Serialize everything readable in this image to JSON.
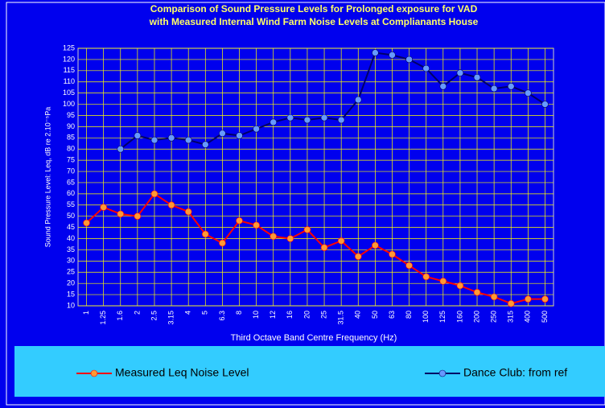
{
  "chart_data": {
    "type": "line",
    "title": [
      "Comparison of Sound Pressure Levels for Prolonged exposure for VAD",
      "with Measured Internal Wind Farm Noise Levels at Complianants House"
    ],
    "x_label": "Third Octave Band Centre Frequency (Hz)",
    "y_label": "Sound Pressure Level: Leq, dB re 2.10⁻⁵Pa",
    "categories": [
      "1",
      "1.25",
      "1.6",
      "2",
      "2.5",
      "3.15",
      "4",
      "5",
      "6.3",
      "8",
      "10",
      "12",
      "16",
      "20",
      "25",
      "31.5",
      "40",
      "50",
      "63",
      "80",
      "100",
      "125",
      "160",
      "200",
      "250",
      "315",
      "400",
      "500"
    ],
    "series": [
      {
        "name": "Measured Leq Noise Level",
        "color": "#ff0000",
        "marker_color": "#ff9933",
        "values": [
          47,
          54,
          51,
          50,
          60,
          55,
          52,
          42,
          38,
          48,
          46,
          41,
          40,
          44,
          36,
          39,
          32,
          37,
          33,
          28,
          23,
          21,
          19,
          16,
          14,
          11,
          13,
          13
        ]
      },
      {
        "name": "Dance Club: from ref",
        "color": "#000066",
        "marker_color": "#6699ff",
        "values": [
          null,
          null,
          80,
          86,
          84,
          85,
          84,
          82,
          87,
          86,
          89,
          92,
          94,
          93,
          94,
          93,
          102,
          123,
          122,
          120,
          116,
          108,
          114,
          112,
          107,
          108,
          105,
          100
        ]
      }
    ],
    "ylim": [
      10,
      125
    ],
    "yticks": [
      10,
      15,
      20,
      25,
      30,
      35,
      40,
      45,
      50,
      55,
      60,
      65,
      70,
      75,
      80,
      85,
      90,
      95,
      100,
      105,
      110,
      115,
      120,
      125
    ],
    "grid": true,
    "legend": "bottom"
  }
}
